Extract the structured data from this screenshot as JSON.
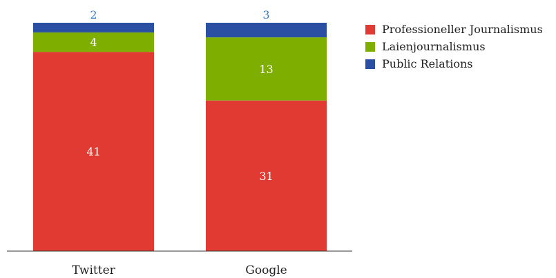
{
  "chart_data": {
    "type": "bar",
    "stacked": true,
    "categories": [
      "Twitter",
      "Google"
    ],
    "series": [
      {
        "name": "Professioneller Journalismus",
        "values": [
          41,
          31
        ],
        "color": "#e03a33"
      },
      {
        "name": "Laienjournalismus",
        "values": [
          4,
          13
        ],
        "color": "#7dae00"
      },
      {
        "name": "Public Relations",
        "values": [
          2,
          3
        ],
        "color": "#2a4fa3"
      }
    ],
    "total_label_color": "#3a7bbf",
    "ylim": [
      0,
      47
    ],
    "legend_position": "top-right",
    "grid": false
  }
}
